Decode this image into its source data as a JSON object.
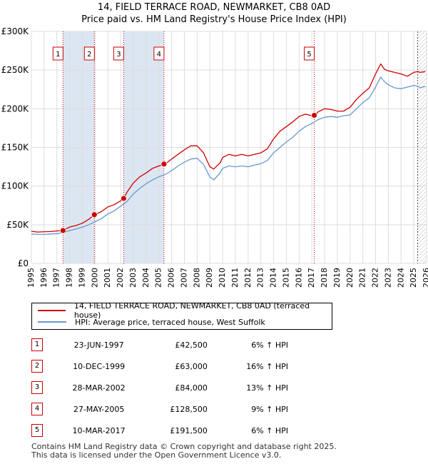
{
  "title": {
    "line1": "14, FIELD TERRACE ROAD, NEWMARKET, CB8 0AD",
    "line2": "Price paid vs. HM Land Registry's House Price Index (HPI)"
  },
  "colors": {
    "property": "#cc0000",
    "hpi": "#6699cc",
    "highlight": "#dce6f2",
    "marker": "#cc0000"
  },
  "chart_data": {
    "type": "line",
    "title": "14, FIELD TERRACE ROAD, NEWMARKET, CB8 0AD — Price paid vs. HM Land Registry's House Price Index (HPI)",
    "xlim": [
      1995,
      2026
    ],
    "ylim": [
      0,
      300000
    ],
    "y_ticks": [
      0,
      50000,
      100000,
      150000,
      200000,
      250000,
      300000
    ],
    "y_tick_labels": [
      "£0",
      "£50K",
      "£100K",
      "£150K",
      "£200K",
      "£250K",
      "£300K"
    ],
    "x_ticks": [
      1995,
      1996,
      1997,
      1998,
      1999,
      2000,
      2001,
      2002,
      2003,
      2004,
      2005,
      2006,
      2007,
      2008,
      2009,
      2010,
      2011,
      2012,
      2013,
      2014,
      2015,
      2016,
      2017,
      2018,
      2019,
      2020,
      2021,
      2022,
      2023,
      2024,
      2025,
      2026
    ],
    "x_tick_labels": [
      "1995",
      "1996",
      "1997",
      "1998",
      "1999",
      "2000",
      "2001",
      "2002",
      "2003",
      "2004",
      "2005",
      "2006",
      "2007",
      "2008",
      "2009",
      "2010",
      "2011",
      "2012",
      "2013",
      "2014",
      "2015",
      "2016",
      "2017",
      "2018",
      "2019",
      "2020",
      "2021",
      "2022",
      "2023",
      "2024",
      "2025",
      "2026"
    ],
    "grid": true,
    "highlight_spans": [
      [
        1997.48,
        1999.94
      ],
      [
        2002.24,
        2005.4
      ]
    ],
    "forecast_start": 2025.3,
    "series": [
      {
        "name": "14, FIELD TERRACE ROAD, NEWMARKET, CB8 0AD (terraced house)",
        "x": [
          1995,
          1995.5,
          1996,
          1996.5,
          1997,
          1997.48,
          1998,
          1998.5,
          1999,
          1999.5,
          1999.94,
          2000.5,
          2001,
          2001.5,
          2002,
          2002.24,
          2002.5,
          2003,
          2003.5,
          2004,
          2004.5,
          2005,
          2005.4,
          2005.7,
          2006,
          2006.5,
          2007,
          2007.5,
          2008,
          2008.5,
          2009,
          2009.3,
          2009.8,
          2010,
          2010.5,
          2011,
          2011.5,
          2012,
          2012.5,
          2013,
          2013.5,
          2014,
          2014.5,
          2015,
          2015.5,
          2016,
          2016.5,
          2017,
          2017.19,
          2017.5,
          2018,
          2018.5,
          2019,
          2019.5,
          2020,
          2020.5,
          2021,
          2021.5,
          2022,
          2022.4,
          2022.7,
          2023,
          2023.5,
          2024,
          2024.5,
          2025,
          2025.3,
          2025.5,
          2025.9
        ],
        "y": [
          41500,
          40500,
          41000,
          41200,
          42000,
          42500,
          47000,
          49000,
          52000,
          57000,
          63000,
          67000,
          73000,
          76000,
          81000,
          84000,
          92000,
          104000,
          112000,
          117000,
          123000,
          126000,
          128500,
          131000,
          135000,
          141000,
          147000,
          152000,
          152000,
          143000,
          125000,
          122000,
          130000,
          137000,
          141000,
          139000,
          141000,
          139000,
          141000,
          143000,
          148000,
          161000,
          171000,
          177000,
          183000,
          190000,
          193000,
          191000,
          191500,
          196000,
          200000,
          199000,
          197000,
          197000,
          202000,
          212000,
          220000,
          227000,
          245000,
          258000,
          251000,
          249000,
          247000,
          245000,
          242000,
          247000,
          248000,
          247000,
          248000
        ]
      },
      {
        "name": "HPI: Average price, terraced house, West Suffolk",
        "x": [
          1995,
          1995.5,
          1996,
          1996.5,
          1997,
          1997.5,
          1998,
          1998.5,
          1999,
          1999.5,
          2000,
          2000.5,
          2001,
          2001.5,
          2002,
          2002.5,
          2003,
          2003.5,
          2004,
          2004.5,
          2005,
          2005.5,
          2006,
          2006.5,
          2007,
          2007.5,
          2008,
          2008.5,
          2009,
          2009.3,
          2009.8,
          2010,
          2010.5,
          2011,
          2011.5,
          2012,
          2012.5,
          2013,
          2013.5,
          2014,
          2014.5,
          2015,
          2015.5,
          2016,
          2016.5,
          2017,
          2017.5,
          2018,
          2018.5,
          2019,
          2019.5,
          2020,
          2020.5,
          2021,
          2021.5,
          2022,
          2022.4,
          2022.7,
          2023,
          2023.5,
          2024,
          2024.5,
          2025,
          2025.3,
          2025.5,
          2025.9
        ],
        "y": [
          38000,
          37500,
          37500,
          38000,
          38500,
          40000,
          42500,
          44500,
          47000,
          50000,
          54000,
          58000,
          64000,
          68000,
          74000,
          80000,
          90000,
          97000,
          103000,
          108000,
          112000,
          115000,
          120000,
          126000,
          131000,
          135000,
          136000,
          128000,
          112000,
          108000,
          117000,
          123000,
          126000,
          125000,
          126000,
          125000,
          127000,
          129000,
          133000,
          143000,
          150000,
          157000,
          163000,
          171000,
          177000,
          181000,
          186000,
          189000,
          190000,
          189000,
          191000,
          192000,
          200000,
          208000,
          214000,
          228000,
          241000,
          235000,
          231000,
          227000,
          226000,
          228000,
          230000,
          229000,
          227000,
          229000
        ]
      }
    ],
    "sales": [
      {
        "num": "1",
        "x": 1997.48,
        "y": 42500
      },
      {
        "num": "2",
        "x": 1999.94,
        "y": 63000
      },
      {
        "num": "3",
        "x": 2002.24,
        "y": 84000
      },
      {
        "num": "4",
        "x": 2005.4,
        "y": 128500
      },
      {
        "num": "5",
        "x": 2017.19,
        "y": 191500
      }
    ]
  },
  "legend": {
    "property_label": "14, FIELD TERRACE ROAD, NEWMARKET, CB8 0AD (terraced house)",
    "hpi_label": "HPI: Average price, terraced house, West Suffolk"
  },
  "table": [
    {
      "num": "1",
      "date": "23-JUN-1997",
      "price": "£42,500",
      "hpi": "6% ↑ HPI"
    },
    {
      "num": "2",
      "date": "10-DEC-1999",
      "price": "£63,000",
      "hpi": "16% ↑ HPI"
    },
    {
      "num": "3",
      "date": "28-MAR-2002",
      "price": "£84,000",
      "hpi": "13% ↑ HPI"
    },
    {
      "num": "4",
      "date": "27-MAY-2005",
      "price": "£128,500",
      "hpi": "9% ↑ HPI"
    },
    {
      "num": "5",
      "date": "10-MAR-2017",
      "price": "£191,500",
      "hpi": "6% ↑ HPI"
    }
  ],
  "footer": {
    "line1": "Contains HM Land Registry data © Crown copyright and database right 2025.",
    "line2": "This data is licensed under the Open Government Licence v3.0."
  }
}
